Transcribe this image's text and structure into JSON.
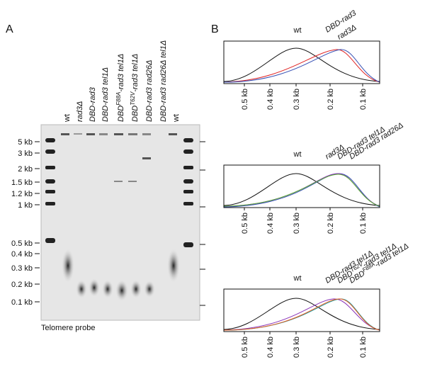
{
  "panel_a": {
    "label": "A",
    "lanes": [
      {
        "text": "wt"
      },
      {
        "segments": [
          {
            "text": "rad3Δ"
          }
        ]
      },
      {
        "segments": [
          {
            "text": "DBD-rad3"
          }
        ]
      },
      {
        "segments": [
          {
            "text": "DBD-rad3 tel1Δ"
          }
        ]
      },
      {
        "segments": [
          {
            "text": "DBD"
          },
          {
            "text": "F88A",
            "sup": true
          },
          {
            "text": "-rad3 tel1Δ"
          }
        ]
      },
      {
        "segments": [
          {
            "text": "DBD"
          },
          {
            "text": "T62V",
            "sup": true
          },
          {
            "text": "-rad3 tel1Δ"
          }
        ]
      },
      {
        "segments": [
          {
            "text": "DBD-rad3 rad26Δ"
          }
        ]
      },
      {
        "segments": [
          {
            "text": "DBD-rad3 rad26Δ tel1Δ"
          }
        ]
      },
      {
        "text": "wt"
      }
    ],
    "markers": [
      "5 kb",
      "3 kb",
      "2 kb",
      "1.5 kb",
      "1.2 kb",
      "1 kb",
      "0.5 kb",
      "0.4 kb",
      "0.3 kb",
      "0.2 kb",
      "0.1 kb"
    ],
    "probe": "Telomere probe"
  },
  "panel_b": {
    "label": "B",
    "profiles": [
      {
        "reference": "wt",
        "labels": [
          {
            "segments": [
              {
                "text": "DBD-rad3"
              }
            ],
            "color": "#e02424"
          },
          {
            "segments": [
              {
                "text": "rad3Δ"
              }
            ],
            "color": "#3650b4"
          }
        ],
        "xticks": [
          "0.5 kb",
          "0.4 kb",
          "0.3 kb",
          "0.2 kb",
          "0.1 kb"
        ]
      },
      {
        "reference": "wt",
        "labels": [
          {
            "segments": [
              {
                "text": "rad3Δ"
              }
            ],
            "color": "#3650b4"
          },
          {
            "segments": [
              {
                "text": "DBD-rad3 tel1Δ"
              }
            ],
            "color": "#8a34b8"
          },
          {
            "segments": [
              {
                "text": "DBD-rad3 rad26Δ"
              }
            ],
            "color": "#5cb030"
          }
        ],
        "xticks": [
          "0.5 kb",
          "0.4 kb",
          "0.3 kb",
          "0.2 kb",
          "0.1 kb"
        ]
      },
      {
        "reference": "wt",
        "labels": [
          {
            "segments": [
              {
                "text": "DBD-rad3 tel1Δ"
              }
            ],
            "color": "#8a34b8"
          },
          {
            "segments": [
              {
                "text": "DBD"
              },
              {
                "text": "T62V",
                "sup": true
              },
              {
                "text": "-rad3 tel1Δ"
              }
            ],
            "color": "#1ea0a8"
          },
          {
            "segments": [
              {
                "text": "DBD"
              },
              {
                "text": "F88A",
                "sup": true
              },
              {
                "text": "-rad3 tel1Δ"
              }
            ],
            "color": "#e8581a"
          }
        ],
        "xticks": [
          "0.5 kb",
          "0.4 kb",
          "0.3 kb",
          "0.2 kb",
          "0.1 kb"
        ]
      }
    ]
  }
}
